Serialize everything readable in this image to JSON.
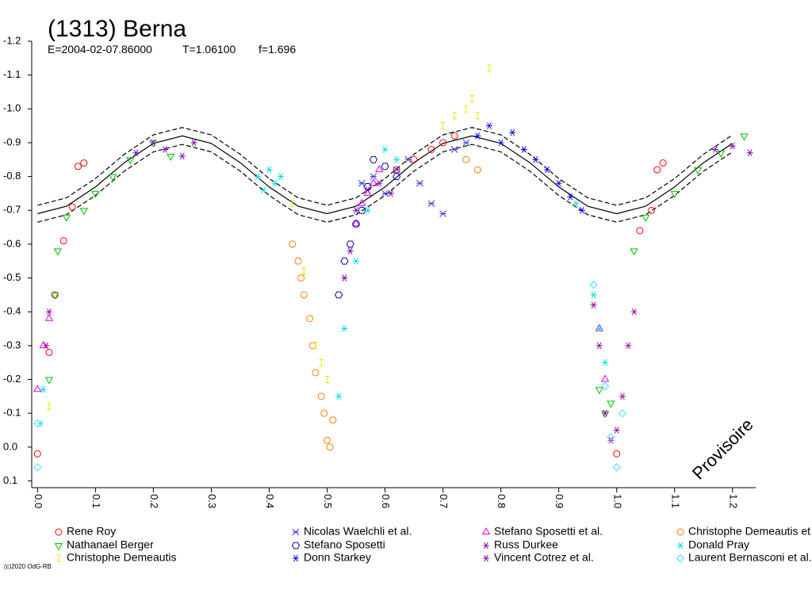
{
  "chart_data": {
    "type": "scatter",
    "title": "(1313) Berna",
    "subtitle_items": [
      "E=2004-02-07.86000",
      "T=1.06100",
      "f=1.696"
    ],
    "watermark": "Provisoire",
    "copyright": "(c)2020 OdG-RB",
    "xlim": [
      -0.01,
      1.24
    ],
    "ylim": [
      -1.2,
      0.12
    ],
    "xticks": [
      {
        "value": 0,
        "label": "0.0"
      },
      0.1,
      0.2,
      0.3,
      0.4,
      0.5,
      0.6,
      0.7,
      0.8,
      0.9,
      {
        "value": 1,
        "label": "1.0"
      },
      1.1,
      1.2
    ],
    "yticks": [
      -1.2,
      -1.1,
      {
        "value": -1,
        "label": "-1.0"
      },
      -0.9,
      -0.8,
      -0.7,
      -0.6,
      -0.5,
      -0.4,
      -0.3,
      -0.2,
      -0.1,
      {
        "value": 0,
        "label": "0.0"
      },
      0.1
    ],
    "model_curves": [
      {
        "dash": false,
        "color": "#000000",
        "x": [
          0,
          0.05,
          0.1,
          0.15,
          0.2,
          0.25,
          0.3,
          0.35,
          0.4,
          0.45,
          0.5,
          0.55,
          0.6,
          0.65,
          0.7,
          0.75,
          0.8,
          0.85,
          0.9,
          0.95,
          1,
          1.05,
          1.1,
          1.15,
          1.2
        ],
        "values": [
          -0.69,
          -0.712,
          -0.769,
          -0.841,
          -0.898,
          -0.92,
          -0.898,
          -0.841,
          -0.769,
          -0.712,
          -0.69,
          -0.712,
          -0.769,
          -0.841,
          -0.898,
          -0.92,
          -0.898,
          -0.841,
          -0.769,
          -0.712,
          -0.69,
          -0.712,
          -0.769,
          -0.841,
          -0.898
        ]
      },
      {
        "dash": true,
        "color": "#000000",
        "x": [
          0,
          0.05,
          0.1,
          0.15,
          0.2,
          0.25,
          0.3,
          0.35,
          0.4,
          0.45,
          0.5,
          0.55,
          0.6,
          0.65,
          0.7,
          0.75,
          0.8,
          0.85,
          0.9,
          0.95,
          1,
          1.05,
          1.1,
          1.15,
          1.2
        ],
        "values": [
          -0.715,
          -0.737,
          -0.794,
          -0.866,
          -0.923,
          -0.945,
          -0.923,
          -0.866,
          -0.794,
          -0.737,
          -0.715,
          -0.737,
          -0.794,
          -0.866,
          -0.923,
          -0.945,
          -0.923,
          -0.866,
          -0.794,
          -0.737,
          -0.715,
          -0.737,
          -0.794,
          -0.866,
          -0.923
        ]
      },
      {
        "dash": true,
        "color": "#000000",
        "x": [
          0,
          0.05,
          0.1,
          0.15,
          0.2,
          0.25,
          0.3,
          0.35,
          0.4,
          0.45,
          0.5,
          0.55,
          0.6,
          0.65,
          0.7,
          0.75,
          0.8,
          0.85,
          0.9,
          0.95,
          1,
          1.05,
          1.1,
          1.15,
          1.2
        ],
        "values": [
          -0.665,
          -0.687,
          -0.744,
          -0.816,
          -0.873,
          -0.895,
          -0.873,
          -0.816,
          -0.744,
          -0.687,
          -0.665,
          -0.687,
          -0.744,
          -0.816,
          -0.873,
          -0.895,
          -0.873,
          -0.816,
          -0.744,
          -0.687,
          -0.665,
          -0.687,
          -0.744,
          -0.816,
          -0.873
        ]
      }
    ],
    "series": [
      {
        "name": "Rene Roy",
        "color": "#ff0000",
        "marker": "circle",
        "x": [
          0.0,
          0.02,
          0.03,
          0.045,
          0.06,
          0.07,
          0.08,
          0.62,
          0.65,
          0.68,
          0.7,
          0.72,
          1.0,
          1.04,
          1.06,
          1.07,
          1.08
        ],
        "values": [
          0.02,
          -0.28,
          -0.45,
          -0.61,
          -0.71,
          -0.83,
          -0.84,
          -0.82,
          -0.85,
          -0.88,
          -0.9,
          -0.92,
          0.02,
          -0.64,
          -0.7,
          -0.82,
          -0.84
        ]
      },
      {
        "name": "Nicolas Waelchli et al.",
        "color": "#4040e0",
        "marker": "cross",
        "x": [
          0.56,
          0.58,
          0.6,
          0.62,
          0.64,
          0.66,
          0.68,
          0.7,
          0.72,
          0.74
        ],
        "values": [
          -0.78,
          -0.8,
          -0.75,
          -0.82,
          -0.85,
          -0.78,
          -0.72,
          -0.69,
          -0.88,
          -0.9
        ]
      },
      {
        "name": "Stefano Sposetti et al.",
        "color": "#e000e0",
        "marker": "triangle",
        "x": [
          0.0,
          0.01,
          0.02,
          0.55,
          0.56,
          0.57,
          0.58,
          0.59,
          0.97,
          0.98
        ],
        "values": [
          -0.17,
          -0.3,
          -0.38,
          -0.66,
          -0.72,
          -0.75,
          -0.78,
          -0.82,
          -0.35,
          -0.2
        ]
      },
      {
        "name": "Christophe Demeautis et al.",
        "color": "#ff8000",
        "marker": "circle",
        "x": [
          0.44,
          0.45,
          0.455,
          0.46,
          0.47,
          0.475,
          0.48,
          0.49,
          0.495,
          0.5,
          0.505,
          0.51,
          0.74,
          0.76
        ],
        "values": [
          -0.6,
          -0.55,
          -0.5,
          -0.45,
          -0.38,
          -0.3,
          -0.22,
          -0.15,
          -0.1,
          -0.02,
          0.0,
          -0.08,
          -0.85,
          -0.82
        ]
      },
      {
        "name": "Nathanael Berger",
        "color": "#00c000",
        "marker": "triangle-down",
        "x": [
          0.02,
          0.03,
          0.035,
          0.05,
          0.08,
          0.1,
          0.13,
          0.16,
          0.2,
          0.23,
          0.97,
          0.98,
          0.99,
          1.03,
          1.05,
          1.1,
          1.14,
          1.18,
          1.22
        ],
        "values": [
          -0.2,
          -0.45,
          -0.58,
          -0.68,
          -0.7,
          -0.75,
          -0.8,
          -0.85,
          -0.9,
          -0.86,
          -0.17,
          -0.1,
          -0.13,
          -0.58,
          -0.68,
          -0.75,
          -0.82,
          -0.87,
          -0.92
        ]
      },
      {
        "name": "Stefano Sposetti",
        "color": "#0000c0",
        "marker": "hexagon",
        "x": [
          0.52,
          0.53,
          0.54,
          0.55,
          0.56,
          0.57,
          0.58,
          0.6,
          0.62
        ],
        "values": [
          -0.45,
          -0.55,
          -0.6,
          -0.66,
          -0.7,
          -0.77,
          -0.85,
          -0.83,
          -0.8
        ]
      },
      {
        "name": "Russ Durkee",
        "color": "#8000c0",
        "marker": "star",
        "x": [
          0.53,
          0.54,
          0.55,
          0.57,
          0.59,
          0.61,
          0.17,
          0.2,
          0.22,
          0.25,
          0.27,
          1.17,
          1.2,
          1.23
        ],
        "values": [
          -0.5,
          -0.58,
          -0.7,
          -0.76,
          -0.78,
          -0.75,
          -0.87,
          -0.9,
          -0.88,
          -0.86,
          -0.9,
          -0.88,
          -0.89,
          -0.87
        ]
      },
      {
        "name": "Donald Pray",
        "color": "#00e0e0",
        "marker": "star",
        "x": [
          0.38,
          0.39,
          0.4,
          0.41,
          0.42,
          0.52,
          0.53,
          0.55,
          0.57,
          0.6,
          0.62,
          0.93,
          0.96,
          0.97,
          0.98,
          0.005,
          0.01
        ],
        "values": [
          -0.8,
          -0.76,
          -0.82,
          -0.78,
          -0.8,
          -0.15,
          -0.35,
          -0.55,
          -0.7,
          -0.88,
          -0.85,
          -0.72,
          -0.45,
          -0.35,
          -0.25,
          -0.07,
          -0.17
        ]
      },
      {
        "name": "Christophe Demeautis",
        "color": "#e8e800",
        "marker": "bar",
        "x": [
          0.44,
          0.46,
          0.48,
          0.49,
          0.5,
          0.7,
          0.72,
          0.74,
          0.75,
          0.76,
          0.78,
          0.02
        ],
        "values": [
          -0.72,
          -0.52,
          -0.3,
          -0.25,
          -0.2,
          -0.95,
          -0.98,
          -1.0,
          -1.03,
          -0.98,
          -1.12,
          -0.12
        ]
      },
      {
        "name": "Donn Starkey",
        "color": "#0000ff",
        "marker": "star",
        "x": [
          0.76,
          0.78,
          0.8,
          0.82,
          0.84,
          0.86,
          0.88,
          0.9,
          0.92,
          0.94
        ],
        "values": [
          -0.92,
          -0.95,
          -0.9,
          -0.93,
          -0.88,
          -0.85,
          -0.82,
          -0.78,
          -0.74,
          -0.7
        ]
      },
      {
        "name": "Vincent Cotrez et al.",
        "color": "#a000a0",
        "marker": "star",
        "x": [
          0.96,
          0.97,
          0.98,
          0.99,
          1.0,
          1.01,
          1.02,
          1.03,
          0.015,
          0.02
        ],
        "values": [
          -0.42,
          -0.3,
          -0.1,
          -0.02,
          -0.05,
          -0.15,
          -0.3,
          -0.4,
          -0.3,
          -0.4
        ]
      },
      {
        "name": "Laurent Bernasconi et al.",
        "color": "#40e0ff",
        "marker": "diamond",
        "x": [
          0.0,
          0.0,
          0.96,
          0.98,
          0.99,
          1.0,
          1.01
        ],
        "values": [
          0.06,
          -0.07,
          -0.48,
          -0.18,
          -0.03,
          0.06,
          -0.1
        ]
      }
    ]
  }
}
